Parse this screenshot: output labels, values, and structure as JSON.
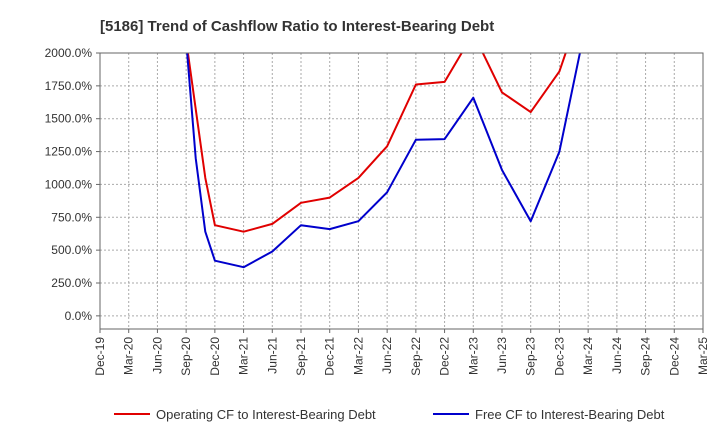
{
  "chart_data": {
    "type": "line",
    "title": "[5186]  Trend of Cashflow Ratio to Interest-Bearing Debt",
    "xlabel": "",
    "ylabel": "",
    "ylim": [
      -100,
      2000
    ],
    "y_ticks": [
      {
        "value": 2000,
        "label": "2000.0%"
      },
      {
        "value": 1750,
        "label": "1750.0%"
      },
      {
        "value": 1500,
        "label": "1500.0%"
      },
      {
        "value": 1250,
        "label": "1250.0%"
      },
      {
        "value": 1000,
        "label": "1000.0%"
      },
      {
        "value": 750,
        "label": "750.0%"
      },
      {
        "value": 500,
        "label": "500.0%"
      },
      {
        "value": 250,
        "label": "250.0%"
      },
      {
        "value": 0,
        "label": "0.0%"
      }
    ],
    "x_ticks": [
      "Dec-19",
      "Mar-20",
      "Jun-20",
      "Sep-20",
      "Dec-20",
      "Mar-21",
      "Jun-21",
      "Sep-21",
      "Dec-21",
      "Mar-22",
      "Jun-22",
      "Sep-22",
      "Dec-22",
      "Mar-23",
      "Jun-23",
      "Sep-23",
      "Dec-23",
      "Mar-24",
      "Jun-24",
      "Sep-24",
      "Dec-24",
      "Mar-25"
    ],
    "grid": true,
    "legend_position": "bottom",
    "series": [
      {
        "name": "Operating CF to Interest-Bearing Debt",
        "color": "#e00000",
        "points": [
          {
            "x": "Sep-20",
            "y": 2100
          },
          {
            "x": "Nov-20",
            "y": 1050
          },
          {
            "x": "Dec-20",
            "y": 690
          },
          {
            "x": "Mar-21",
            "y": 640
          },
          {
            "x": "Jun-21",
            "y": 700
          },
          {
            "x": "Sep-21",
            "y": 860
          },
          {
            "x": "Dec-21",
            "y": 900
          },
          {
            "x": "Mar-22",
            "y": 1050
          },
          {
            "x": "Jun-22",
            "y": 1290
          },
          {
            "x": "Sep-22",
            "y": 1760
          },
          {
            "x": "Dec-22",
            "y": 1780
          },
          {
            "x": "Mar-23",
            "y": 2150
          },
          {
            "x": "Jun-23",
            "y": 1700
          },
          {
            "x": "Sep-23",
            "y": 1550
          },
          {
            "x": "Dec-23",
            "y": 1860
          },
          {
            "x": "Mar-24",
            "y": 2500
          }
        ]
      },
      {
        "name": "Free CF to Interest-Bearing Debt",
        "color": "#0000cc",
        "points": [
          {
            "x": "Sep-20",
            "y": 2100
          },
          {
            "x": "Oct-20",
            "y": 1200
          },
          {
            "x": "Nov-20",
            "y": 640
          },
          {
            "x": "Dec-20",
            "y": 420
          },
          {
            "x": "Mar-21",
            "y": 370
          },
          {
            "x": "Jun-21",
            "y": 490
          },
          {
            "x": "Sep-21",
            "y": 690
          },
          {
            "x": "Dec-21",
            "y": 660
          },
          {
            "x": "Mar-22",
            "y": 720
          },
          {
            "x": "Jun-22",
            "y": 940
          },
          {
            "x": "Sep-22",
            "y": 1340
          },
          {
            "x": "Dec-22",
            "y": 1345
          },
          {
            "x": "Mar-23",
            "y": 1660
          },
          {
            "x": "Jun-23",
            "y": 1110
          },
          {
            "x": "Sep-23",
            "y": 720
          },
          {
            "x": "Dec-23",
            "y": 1250
          },
          {
            "x": "Mar-24",
            "y": 2300
          }
        ]
      }
    ]
  }
}
